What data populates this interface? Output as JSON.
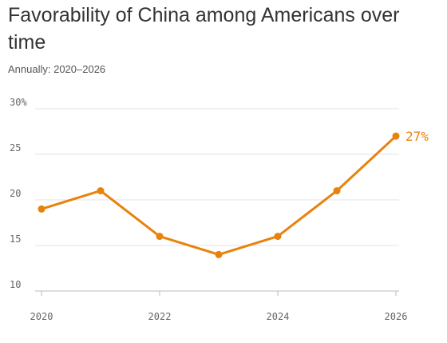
{
  "chart_data": {
    "type": "line",
    "title": "Favorability of China among Americans over time",
    "subtitle": "Annually: 2020–2026",
    "x": [
      2020,
      2021,
      2022,
      2023,
      2024,
      2025,
      2026
    ],
    "series": [
      {
        "values": [
          19,
          21,
          16,
          14,
          16,
          21,
          27
        ]
      }
    ],
    "y_ticks": [
      {
        "value": 30,
        "label": "30%"
      },
      {
        "value": 25,
        "label": "25"
      },
      {
        "value": 20,
        "label": "20"
      },
      {
        "value": 15,
        "label": "15"
      },
      {
        "value": 10,
        "label": "10"
      }
    ],
    "x_ticks": [
      {
        "value": 2020,
        "label": "2020"
      },
      {
        "value": 2022,
        "label": "2022"
      },
      {
        "value": 2024,
        "label": "2024"
      },
      {
        "value": 2026,
        "label": "2026"
      }
    ],
    "end_label": "27%",
    "ylim": [
      10,
      30
    ],
    "xlim": [
      2020,
      2026
    ],
    "grid": true,
    "line_color": "#e8820c"
  }
}
